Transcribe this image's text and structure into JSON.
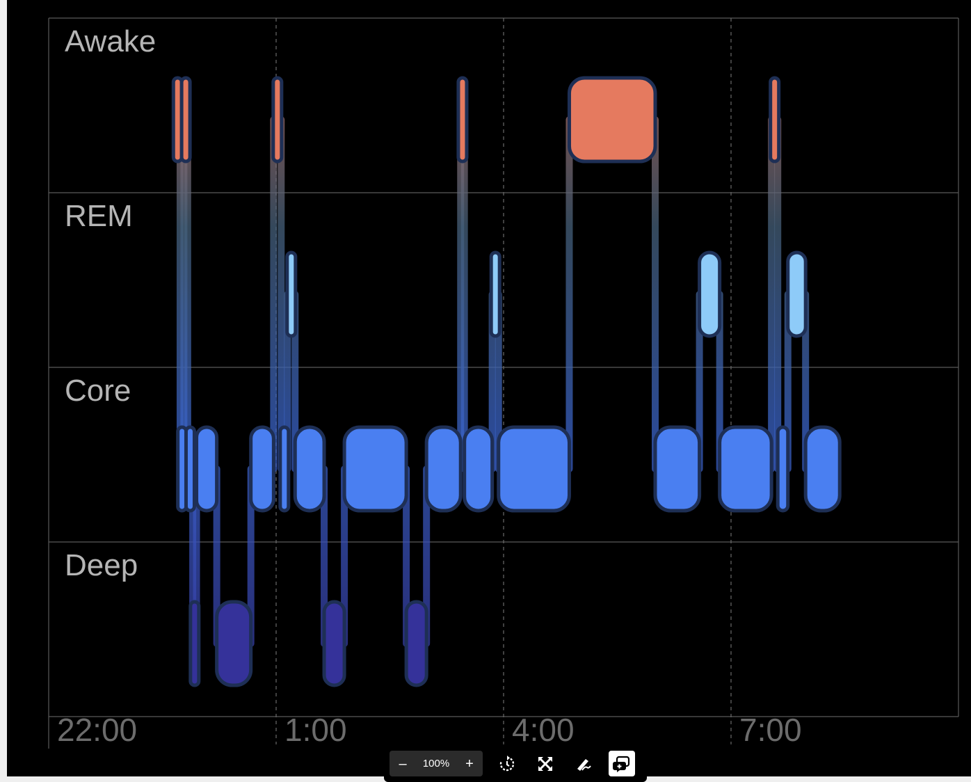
{
  "chart_data": {
    "type": "sleep-stage-hypnogram",
    "stages": [
      "Awake",
      "REM",
      "Core",
      "Deep"
    ],
    "x_ticks": [
      "22:00",
      "1:00",
      "4:00",
      "7:00"
    ],
    "x_range_hours": [
      22,
      34.5
    ],
    "grid": true,
    "segments": [
      {
        "stage": "Awake",
        "start": "23:40",
        "end": "23:44"
      },
      {
        "stage": "Core",
        "start": "23:44",
        "end": "23:47"
      },
      {
        "stage": "Awake",
        "start": "23:47",
        "end": "23:50"
      },
      {
        "stage": "Core",
        "start": "23:50",
        "end": "23:54"
      },
      {
        "stage": "Deep",
        "start": "23:54",
        "end": "23:57"
      },
      {
        "stage": "Core",
        "start": "23:57",
        "end": "00:13"
      },
      {
        "stage": "Deep",
        "start": "00:13",
        "end": "00:40"
      },
      {
        "stage": "Core",
        "start": "00:40",
        "end": "00:58"
      },
      {
        "stage": "Awake",
        "start": "00:58",
        "end": "01:04"
      },
      {
        "stage": "Core",
        "start": "01:04",
        "end": "01:09"
      },
      {
        "stage": "REM",
        "start": "01:09",
        "end": "01:15"
      },
      {
        "stage": "Core",
        "start": "01:15",
        "end": "01:38"
      },
      {
        "stage": "Deep",
        "start": "01:38",
        "end": "01:54"
      },
      {
        "stage": "Core",
        "start": "01:54",
        "end": "02:43"
      },
      {
        "stage": "Deep",
        "start": "02:43",
        "end": "02:59"
      },
      {
        "stage": "Core",
        "start": "02:59",
        "end": "03:26"
      },
      {
        "stage": "Awake",
        "start": "03:26",
        "end": "03:29"
      },
      {
        "stage": "Core",
        "start": "03:29",
        "end": "03:51"
      },
      {
        "stage": "REM",
        "start": "03:51",
        "end": "03:56"
      },
      {
        "stage": "Core",
        "start": "03:56",
        "end": "04:52"
      },
      {
        "stage": "Awake",
        "start": "04:52",
        "end": "06:00"
      },
      {
        "stage": "Core",
        "start": "06:00",
        "end": "06:35"
      },
      {
        "stage": "REM",
        "start": "06:35",
        "end": "06:51"
      },
      {
        "stage": "Core",
        "start": "06:51",
        "end": "07:32"
      },
      {
        "stage": "Awake",
        "start": "07:32",
        "end": "07:37"
      },
      {
        "stage": "Core",
        "start": "07:37",
        "end": "07:45"
      },
      {
        "stage": "REM",
        "start": "07:45",
        "end": "07:59"
      },
      {
        "stage": "Core",
        "start": "07:59",
        "end": "08:26"
      }
    ],
    "colors": {
      "Awake": "#e57a5f",
      "REM": "#8ecbf8",
      "Core": "#4a7ff1",
      "Deep": "#35329a",
      "background": "#000000",
      "label": "#9a9a9a",
      "grid": "#5a5a5a"
    }
  },
  "toolbar": {
    "zoom_out_icon": "minus-icon",
    "zoom_label": "100%",
    "zoom_in_icon": "plus-icon",
    "tools": [
      "rotate-icon",
      "fit-screen-icon",
      "annotate-pen-icon",
      "comment-add-icon"
    ]
  }
}
